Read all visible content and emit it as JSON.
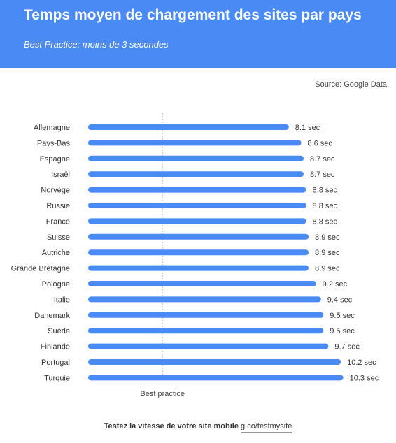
{
  "header": {
    "title": "Temps moyen de chargement des sites par pays",
    "subtitle": "Best Practice: moins de 3 secondes",
    "bg_color": "#4a8af4"
  },
  "source": "Source: Google Data",
  "footer": {
    "cta": "Testez la vitesse de votre site mobile",
    "link": "g.co/testmysite"
  },
  "chart_data": {
    "type": "bar",
    "orientation": "horizontal",
    "categories": [
      "Allemagne",
      "Pays-Bas",
      "Espagne",
      "Israël",
      "Norvège",
      "Russie",
      "France",
      "Suisse",
      "Autriche",
      "Grande Bretagne",
      "Pologne",
      "Italie",
      "Danemark",
      "Suède",
      "Finlande",
      "Portugal",
      "Turquie"
    ],
    "values": [
      8.1,
      8.6,
      8.7,
      8.7,
      8.8,
      8.8,
      8.8,
      8.9,
      8.9,
      8.9,
      9.2,
      9.4,
      9.5,
      9.5,
      9.7,
      10.2,
      10.3
    ],
    "value_labels": [
      "8.1 sec",
      "8.6 sec",
      "8.7 sec",
      "8.7 sec",
      "8.8 sec",
      "8.8 sec",
      "8.8 sec",
      "8.9 sec",
      "8.9 sec",
      "8.9 sec",
      "9.2 sec",
      "9.4 sec",
      "9.5 sec",
      "9.5 sec",
      "9.7 sec",
      "10.2 sec",
      "10.3 sec"
    ],
    "reference_line": {
      "value": 3,
      "label": "Best practice"
    },
    "bar_color": "#4a8af4",
    "grid": false
  }
}
